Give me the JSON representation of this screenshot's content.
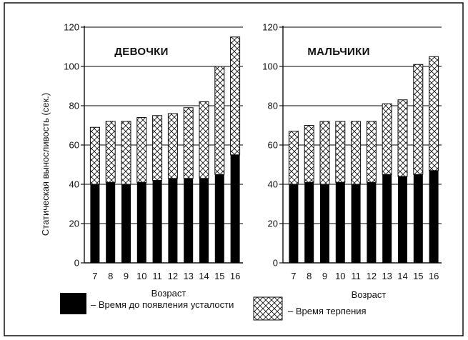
{
  "chart_data": [
    {
      "type": "bar",
      "stacked": true,
      "title": "ДЕВОЧКИ",
      "xlabel": "",
      "ylabel": "Статическая выносливость (сек.)",
      "ylim": [
        0,
        120
      ],
      "yticks": [
        0,
        20,
        40,
        60,
        80,
        100,
        120
      ],
      "grid": true,
      "categories": [
        "7",
        "8",
        "9",
        "10",
        "11",
        "12",
        "13",
        "14",
        "15",
        "16"
      ],
      "series": [
        {
          "name": "– Время до появления усталости",
          "values": [
            40,
            41,
            40,
            41,
            42,
            43,
            43,
            43,
            45,
            55
          ]
        },
        {
          "name": "– Время терпения",
          "values": [
            29,
            31,
            32,
            33,
            33,
            33,
            36,
            39,
            55,
            60
          ]
        }
      ]
    },
    {
      "type": "bar",
      "stacked": true,
      "title": "МАЛЬЧИКИ",
      "xlabel": "Возраст",
      "ylabel": "",
      "ylim": [
        0,
        120
      ],
      "yticks": [
        0,
        20,
        40,
        60,
        80,
        100,
        120
      ],
      "grid": true,
      "categories": [
        "7",
        "8",
        "9",
        "10",
        "11",
        "12",
        "13",
        "14",
        "15",
        "16"
      ],
      "series": [
        {
          "name": "– Время до появления усталости",
          "values": [
            40,
            41,
            40,
            41,
            40,
            41,
            45,
            44,
            45,
            47
          ]
        },
        {
          "name": "– Время терпения",
          "values": [
            27,
            29,
            32,
            31,
            32,
            31,
            36,
            39,
            56,
            58
          ]
        }
      ]
    }
  ],
  "xlabel_left": "Возраст",
  "legend": {
    "fatigue_label": "– Время до появления усталости",
    "endurance_label": "– Время терпения"
  },
  "colors": {
    "fatigue": "#000000",
    "endurance": "#ffffff",
    "grid": "#000000"
  }
}
